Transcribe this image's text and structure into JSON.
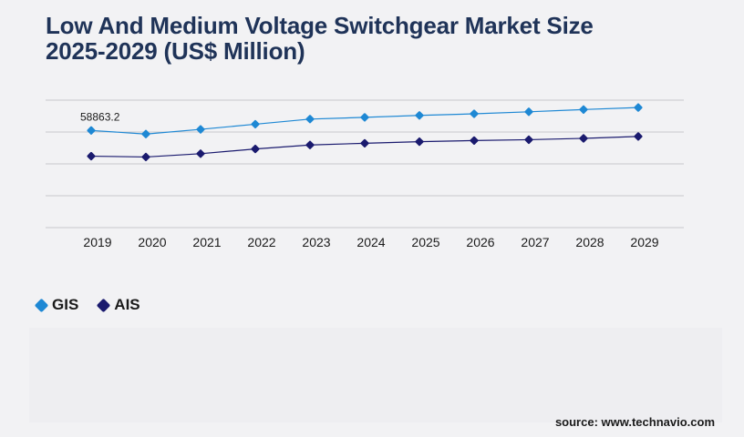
{
  "title_line1": "Low And Medium Voltage Switchgear Market Size",
  "title_line2": "2025-2029 (US$ Million)",
  "source": "source: www.technavio.com",
  "colors": {
    "GIS": "#1e88d4",
    "AIS": "#1a1a6e",
    "grid": "#c8c8cc",
    "title": "#1f3358"
  },
  "chart_data": {
    "type": "line",
    "title": "Low And Medium Voltage Switchgear Market Size 2025-2029 (US$ Million)",
    "x": [
      "2019",
      "2020",
      "2021",
      "2022",
      "2023",
      "2024",
      "2025",
      "2026",
      "2027",
      "2028",
      "2029"
    ],
    "series": [
      {
        "name": "GIS",
        "values": [
          58863.2,
          58024,
          59126,
          60334,
          61542,
          61948,
          62403,
          62782,
          63257,
          63787,
          64264
        ]
      },
      {
        "name": "AIS",
        "values": [
          52811,
          52622,
          53396,
          54514,
          55453,
          55850,
          56229,
          56492,
          56688,
          57007,
          57448
        ]
      }
    ],
    "data_labels": [
      {
        "series": "GIS",
        "x": "2019",
        "text": "58863.2"
      }
    ],
    "ylim": [
      36000,
      66000
    ],
    "y_ticks_labeled": false,
    "grid": true,
    "legend": "bottom-left",
    "xlabel": "",
    "ylabel": ""
  }
}
